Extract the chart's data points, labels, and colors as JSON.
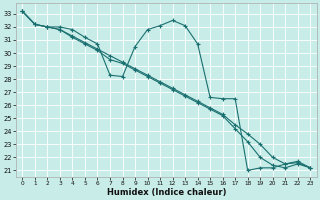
{
  "xlabel": "Humidex (Indice chaleur)",
  "bg_color": "#c8ece8",
  "line_color": "#1a7070",
  "grid_color": "#ffffff",
  "ylim": [
    20.5,
    33.8
  ],
  "xlim": [
    -0.5,
    23.5
  ],
  "yticks": [
    21,
    22,
    23,
    24,
    25,
    26,
    27,
    28,
    29,
    30,
    31,
    32,
    33
  ],
  "xticks": [
    0,
    1,
    2,
    3,
    4,
    5,
    6,
    7,
    8,
    9,
    10,
    11,
    12,
    13,
    14,
    15,
    16,
    17,
    18,
    19,
    20,
    21,
    22,
    23
  ],
  "line1_y": [
    33.2,
    32.2,
    32.0,
    32.0,
    31.8,
    31.2,
    30.7,
    28.3,
    28.2,
    30.5,
    31.8,
    32.1,
    32.5,
    32.1,
    30.7,
    26.6,
    26.5,
    26.5,
    21.0,
    21.2,
    21.2,
    21.5,
    21.6,
    21.2
  ],
  "line2_y": [
    33.2,
    32.2,
    32.0,
    31.8,
    31.2,
    30.7,
    30.2,
    29.5,
    29.2,
    28.7,
    28.2,
    27.7,
    27.2,
    26.7,
    26.2,
    25.7,
    25.2,
    24.2,
    23.2,
    22.0,
    21.4,
    21.2,
    21.5,
    21.2
  ],
  "line3_y": [
    33.2,
    32.2,
    32.0,
    31.8,
    31.3,
    30.8,
    30.3,
    29.8,
    29.3,
    28.8,
    28.3,
    27.8,
    27.3,
    26.8,
    26.3,
    25.8,
    25.3,
    24.5,
    23.8,
    23.0,
    22.0,
    21.5,
    21.7,
    21.2
  ],
  "marker_size": 3,
  "linewidth": 0.8,
  "tick_labelsize": 5,
  "xlabel_fontsize": 6
}
